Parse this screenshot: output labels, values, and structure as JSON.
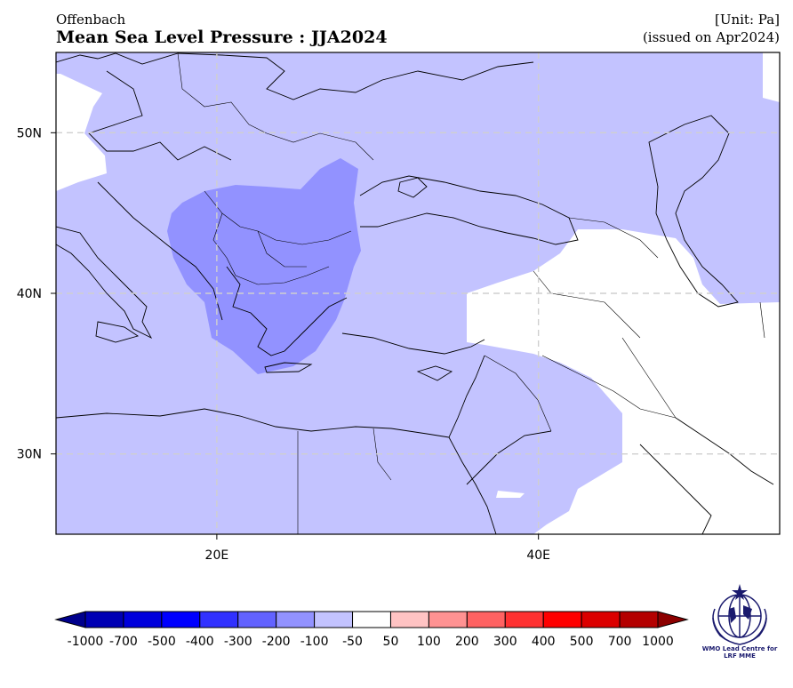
{
  "header": {
    "origin": "Offenbach",
    "title": "Mean Sea Level Pressure : JJA2024",
    "unit": "[Unit: Pa]",
    "issued": "(issued on Apr2024)"
  },
  "map": {
    "lon_range": [
      10,
      55
    ],
    "lat_range": [
      25,
      55
    ],
    "x_ticks": [
      {
        "lon": 20,
        "label": "20E"
      },
      {
        "lon": 40,
        "label": "40E"
      }
    ],
    "y_ticks": [
      {
        "lat": 50,
        "label": "50N"
      },
      {
        "lat": 40,
        "label": "40N"
      },
      {
        "lat": 30,
        "label": "30N"
      }
    ],
    "gridlines": true,
    "anomaly_regions": [
      {
        "name": "broad-negative-anomaly",
        "category": "-100 to -50",
        "color": "#c3c3ff"
      },
      {
        "name": "balkan-aegean-core",
        "category": "-200 to -100",
        "color": "#9292ff"
      }
    ]
  },
  "colorbar": {
    "labels": [
      "-1000",
      "-700",
      "-500",
      "-400",
      "-300",
      "-200",
      "-100",
      "-50",
      "50",
      "100",
      "200",
      "300",
      "400",
      "500",
      "700",
      "1000"
    ],
    "colors": [
      "#0000b4",
      "#0000dc",
      "#0000ff",
      "#3131ff",
      "#6262ff",
      "#9292ff",
      "#c3c3ff",
      "#ffffff",
      "#ffc3c3",
      "#ff9292",
      "#ff6262",
      "#ff3131",
      "#ff0000",
      "#dc0000",
      "#b40000"
    ],
    "under_color": "#00008c",
    "over_color": "#8c0000"
  },
  "logo": {
    "icon": "wmo-emblem-icon",
    "caption_line1": "WMO Lead Centre for",
    "caption_line2": "LRF MME"
  }
}
